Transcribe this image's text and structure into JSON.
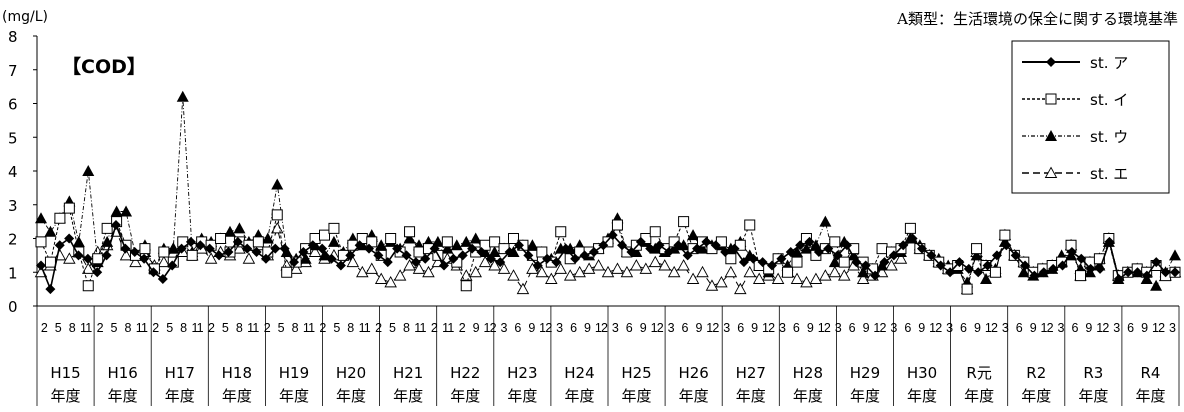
{
  "unit_label": "(mg/L)",
  "standard_label": "A類型：生活環境の保全に関する環境基準",
  "chart_data": {
    "type": "line",
    "title": "【COD】",
    "ylabel": "(mg/L)",
    "ylim": [
      0,
      8
    ],
    "yticks": [
      "0",
      "1",
      "2",
      "3",
      "4",
      "5",
      "6",
      "7",
      "8"
    ],
    "grid": false,
    "legend_position": "top-right",
    "month_ticks": [
      "2",
      "5",
      "8",
      "11",
      "2",
      "5",
      "8",
      "11",
      "2",
      "5",
      "8",
      "11",
      "2",
      "5",
      "8",
      "11",
      "2",
      "5",
      "8",
      "11",
      "2",
      "5",
      "8",
      "11",
      "2",
      "5",
      "8",
      "11",
      "2",
      "11",
      "2",
      "9",
      "12",
      "3",
      "6",
      "9",
      "12",
      "3",
      "6",
      "9",
      "12",
      "3",
      "6",
      "9",
      "12",
      "3",
      "6",
      "9",
      "12",
      "3",
      "6",
      "9",
      "12",
      "3",
      "6",
      "9",
      "12",
      "3",
      "6",
      "9",
      "12",
      "3",
      "6",
      "9",
      "12",
      "3",
      "6",
      "9",
      "12",
      "3",
      "6",
      "9",
      "12",
      "3",
      "6",
      "9",
      "12",
      "3",
      "6",
      "9",
      "12",
      "3"
    ],
    "fiscal_years": [
      "H15年度",
      "H16年度",
      "H17年度",
      "H18年度",
      "H19年度",
      "H20年度",
      "H21年度",
      "H22年度",
      "H23年度",
      "H24年度",
      "H25年度",
      "H26年度",
      "H27年度",
      "H28年度",
      "H29年度",
      "H30年度",
      "R元年度",
      "R2年度",
      "R3年度",
      "R4年度"
    ],
    "series": [
      {
        "name": "st. ア",
        "marker": "diamond-filled",
        "dash": "solid",
        "values": [
          1.2,
          0.5,
          1.8,
          2.0,
          1.5,
          1.4,
          1.0,
          1.5,
          2.4,
          1.7,
          1.6,
          1.4,
          1.0,
          0.8,
          1.2,
          1.7,
          1.9,
          1.8,
          1.7,
          1.5,
          1.6,
          1.9,
          1.7,
          1.6,
          1.4,
          1.7,
          1.7,
          1.3,
          1.6,
          1.8,
          1.7,
          1.4,
          1.2,
          1.5,
          1.8,
          1.7,
          1.5,
          1.3,
          1.7,
          1.5,
          1.3,
          1.4,
          1.7,
          1.2,
          1.4,
          1.5,
          1.7,
          1.6,
          1.4,
          1.3,
          1.6,
          1.8,
          1.5,
          1.2,
          1.4,
          1.3,
          1.7,
          1.4,
          1.5,
          1.6,
          1.8,
          2.1,
          1.8,
          1.6,
          1.9,
          1.7,
          1.8,
          1.6,
          1.8,
          1.5,
          1.7,
          1.9,
          1.8,
          1.6,
          1.7,
          1.3,
          1.4,
          1.3,
          1.2,
          1.4,
          1.6,
          1.8,
          1.9,
          1.6,
          1.7,
          1.5,
          1.8,
          1.3,
          1.2,
          0.9,
          1.3,
          1.5,
          1.8,
          2.0,
          1.7,
          1.5,
          1.2,
          1.0,
          1.3,
          1.1,
          1.0,
          1.2,
          1.5,
          1.8,
          1.5,
          1.2,
          0.9,
          1.0,
          1.1,
          1.2,
          1.6,
          1.4,
          1.1,
          1.1,
          1.9,
          0.8,
          1.0,
          1.0,
          0.9,
          1.3,
          1.0,
          1.0
        ]
      },
      {
        "name": "st. イ",
        "marker": "square-open",
        "dash": "fine-dash",
        "values": [
          1.9,
          1.3,
          2.6,
          2.9,
          1.6,
          0.6,
          1.4,
          2.3,
          2.5,
          1.8,
          1.5,
          1.7,
          1.1,
          1.6,
          1.3,
          1.9,
          1.5,
          1.9,
          1.8,
          2.0,
          1.6,
          1.9,
          1.8,
          1.9,
          1.6,
          2.7,
          1.0,
          1.3,
          1.7,
          2.0,
          2.1,
          2.3,
          1.5,
          1.8,
          2.0,
          1.9,
          1.5,
          2.0,
          1.6,
          2.2,
          1.6,
          1.7,
          1.5,
          1.9,
          1.3,
          0.6,
          1.6,
          1.8,
          1.9,
          1.7,
          2.0,
          1.8,
          1.5,
          1.6,
          1.3,
          2.2,
          1.4,
          1.6,
          1.6,
          1.7,
          1.9,
          2.4,
          1.6,
          1.8,
          2.0,
          2.2,
          1.7,
          1.9,
          2.5,
          1.7,
          1.9,
          1.7,
          1.9,
          1.4,
          1.8,
          2.4,
          1.2,
          1.1,
          1.4,
          1.0,
          1.3,
          2.0,
          1.5,
          1.7,
          1.9,
          1.3,
          1.7,
          1.3,
          1.1,
          1.7,
          1.6,
          1.7,
          2.3,
          1.7,
          1.5,
          1.3,
          1.1,
          1.2,
          0.5,
          1.7,
          1.2,
          1.0,
          2.1,
          1.5,
          1.3,
          1.0,
          1.1,
          1.2,
          1.3,
          1.8,
          0.9,
          1.3,
          1.4,
          2.0,
          0.9,
          1.0,
          1.1,
          1.0,
          1.2,
          0.9,
          1.0
        ]
      },
      {
        "name": "st. ウ",
        "marker": "triangle-filled",
        "dash": "dash-dot",
        "values": [
          2.6,
          2.2,
          2.6,
          3.1,
          1.9,
          4.0,
          1.3,
          1.9,
          2.8,
          2.8,
          1.5,
          1.8,
          1.1,
          1.7,
          1.7,
          6.2,
          1.6,
          2.0,
          1.9,
          2.0,
          2.2,
          2.3,
          1.9,
          2.1,
          2.0,
          3.6,
          1.6,
          1.4,
          1.4,
          1.8,
          1.5,
          1.9,
          1.6,
          2.0,
          1.8,
          2.1,
          1.8,
          1.9,
          1.7,
          2.0,
          1.8,
          1.9,
          1.9,
          1.7,
          1.8,
          1.9,
          2.0,
          1.6,
          1.6,
          1.7,
          1.6,
          1.8,
          1.8,
          1.6,
          1.4,
          1.7,
          1.7,
          1.8,
          1.5,
          1.7,
          2.0,
          2.6,
          1.6,
          1.6,
          1.9,
          1.7,
          1.6,
          1.7,
          1.8,
          2.1,
          1.7,
          1.8,
          1.8,
          1.7,
          1.9,
          1.5,
          1.2,
          1.0,
          1.4,
          1.2,
          1.6,
          1.7,
          1.8,
          2.5,
          1.3,
          1.9,
          1.5,
          1.0,
          1.1,
          1.2,
          1.6,
          1.6,
          2.0,
          1.8,
          1.5,
          1.4,
          1.2,
          1.1,
          0.7,
          1.5,
          0.8,
          1.1,
          1.9,
          1.5,
          1.0,
          0.9,
          1.0,
          1.1,
          1.5,
          1.5,
          1.1,
          1.0,
          1.2,
          1.9,
          0.8,
          1.0,
          1.0,
          0.8,
          0.6,
          1.0,
          1.5
        ]
      },
      {
        "name": "st. エ",
        "marker": "triangle-open",
        "dash": "long-dash",
        "values": [
          1.0,
          1.2,
          1.5,
          1.4,
          1.6,
          1.1,
          1.6,
          1.8,
          2.2,
          1.5,
          1.3,
          1.6,
          1.2,
          1.3,
          1.7,
          1.6,
          1.5,
          1.7,
          1.4,
          1.6,
          1.5,
          1.7,
          1.4,
          1.8,
          1.5,
          2.3,
          1.2,
          1.1,
          1.3,
          1.6,
          1.4,
          1.5,
          1.5,
          1.3,
          1.0,
          1.1,
          0.8,
          0.7,
          0.9,
          1.2,
          1.1,
          1.0,
          1.3,
          1.4,
          1.2,
          0.9,
          1.0,
          1.3,
          1.2,
          1.1,
          0.9,
          0.5,
          1.1,
          1.0,
          0.8,
          1.1,
          0.9,
          1.0,
          1.1,
          1.2,
          1.0,
          1.1,
          1.0,
          1.2,
          1.1,
          1.3,
          1.2,
          1.0,
          1.2,
          0.8,
          1.0,
          0.6,
          0.7,
          1.0,
          0.5,
          1.0,
          0.8,
          0.9,
          0.8,
          1.0,
          0.8,
          0.7,
          0.8,
          0.9,
          1.0,
          0.9,
          1.2,
          0.8,
          0.9,
          1.0,
          1.2,
          1.4,
          2.0,
          1.7,
          1.5,
          1.3,
          1.1,
          1.2,
          0.5,
          1.6,
          1.2,
          1.0,
          2.1,
          1.5,
          1.3,
          1.0,
          1.1,
          1.2,
          1.3,
          1.8,
          0.9,
          1.3,
          1.4,
          2.0,
          0.9,
          1.0,
          1.1,
          1.0,
          1.2,
          0.9,
          1.0
        ]
      }
    ]
  }
}
